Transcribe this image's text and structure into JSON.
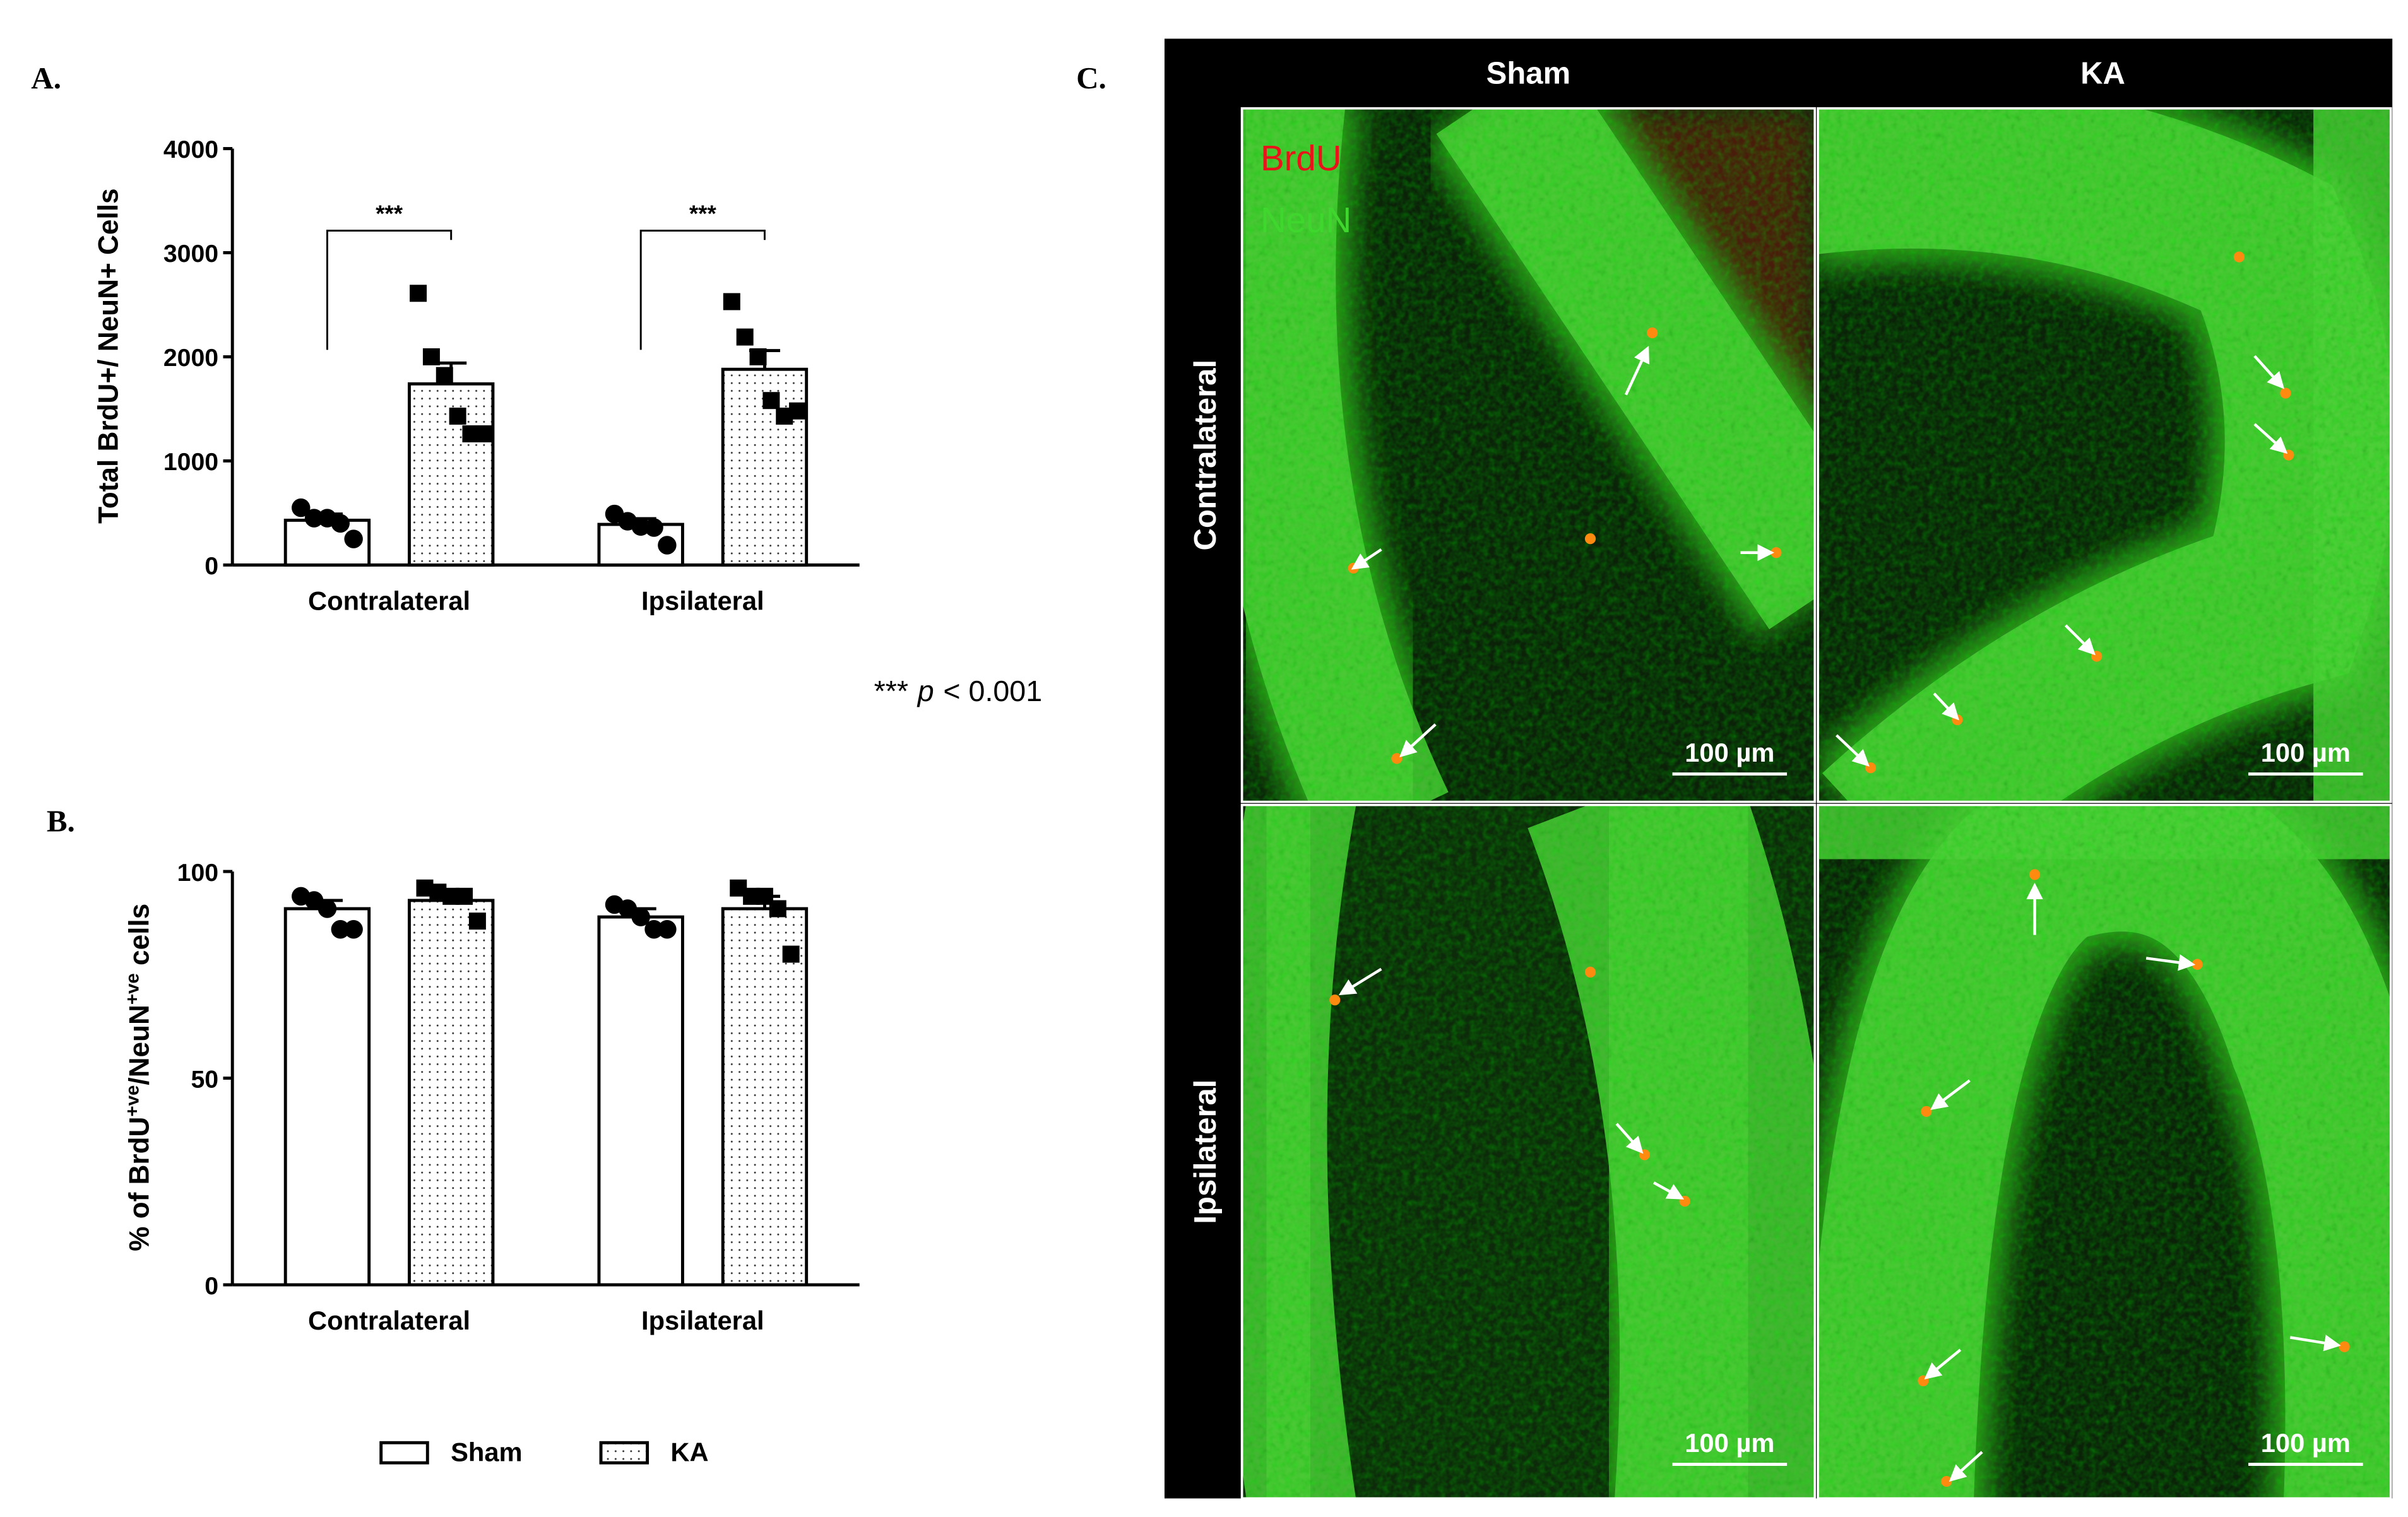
{
  "chart_data": [
    {
      "type": "bar",
      "panel_label": "A.",
      "y_label": [
        {
          "text": "Total BrdU+/ NeuN+ Cells"
        }
      ],
      "categories": [
        "Contralateral",
        "Ipsilateral"
      ],
      "ylim": [
        0,
        4000
      ],
      "yticks": [
        0,
        1000,
        2000,
        3000,
        4000
      ],
      "series": [
        {
          "name": "Sham",
          "color": "#ffffff",
          "marker": "circle",
          "values": [
            430,
            390
          ],
          "errors": [
            60,
            55
          ],
          "points": [
            [
              550,
              450,
              450,
              400,
              250
            ],
            [
              490,
              420,
              370,
              360,
              190
            ]
          ]
        },
        {
          "name": "KA",
          "color": "#ffffff",
          "pattern": "dots",
          "marker": "square",
          "values": [
            1740,
            1880
          ],
          "errors": [
            200,
            180
          ],
          "points": [
            [
              2610,
              2000,
              1820,
              1430,
              1260,
              1260
            ],
            [
              2530,
              2190,
              2000,
              1580,
              1430,
              1480
            ]
          ]
        }
      ],
      "annotations": [
        "***",
        "***"
      ],
      "note": [
        {
          "text": "***"
        },
        {
          "text": "p",
          "italic": true
        },
        {
          "text": "< 0.001"
        }
      ]
    },
    {
      "type": "bar",
      "panel_label": "B.",
      "y_label": [
        {
          "text": "% of BrdU"
        },
        {
          "text": "+ve",
          "sup": true
        },
        {
          "text": "/NeuN"
        },
        {
          "text": "+ve",
          "sup": true
        },
        {
          "text": " cells"
        }
      ],
      "categories": [
        "Contralateral",
        "Ipsilateral"
      ],
      "ylim": [
        0,
        100
      ],
      "yticks": [
        0,
        50,
        100
      ],
      "series": [
        {
          "name": "Sham",
          "color": "#ffffff",
          "marker": "circle",
          "values": [
            91,
            89
          ],
          "errors": [
            2,
            2
          ],
          "points": [
            [
              94,
              93,
              91,
              86,
              86
            ],
            [
              92,
              91,
              89,
              86,
              86
            ]
          ]
        },
        {
          "name": "KA",
          "color": "#ffffff",
          "pattern": "dots",
          "marker": "square",
          "values": [
            93,
            91
          ],
          "errors": [
            2,
            3
          ],
          "points": [
            [
              96,
              95,
              94,
              94,
              88
            ],
            [
              96,
              94,
              94,
              91,
              80
            ]
          ]
        }
      ],
      "legend": true,
      "legend_position": "bottom"
    }
  ],
  "panel_c": {
    "panel_label": "C.",
    "columns": [
      "Sham",
      "KA"
    ],
    "rows": [
      "Contralateral",
      "Ipsilateral"
    ],
    "channels": [
      {
        "name": "BrdU",
        "color": "#e8141a"
      },
      {
        "name": "NeuN",
        "color": "#3fd62e"
      }
    ],
    "scale_bars": [
      "100 µm",
      "100 µm",
      "100 µm",
      "100 µm"
    ]
  }
}
